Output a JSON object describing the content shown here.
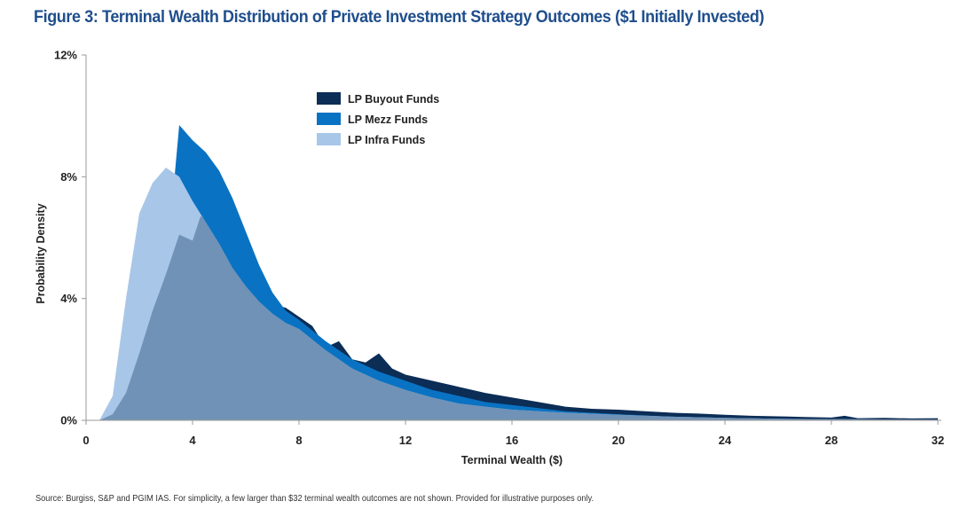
{
  "title": "Figure 3: Terminal Wealth Distribution of Private Investment Strategy Outcomes ($1 Initially Invested)",
  "source": "Source: Burgiss, S&P and PGIM IAS. For simplicity, a few larger than $32 terminal wealth outcomes are not shown. Provided for illustrative purposes only.",
  "chart_data": {
    "type": "area",
    "xlabel": "Terminal Wealth ($)",
    "ylabel": "Probability Density",
    "xlim": [
      0,
      32
    ],
    "ylim": [
      0,
      12
    ],
    "x_ticks": [
      "0",
      "4",
      "8",
      "12",
      "16",
      "20",
      "24",
      "28",
      "32"
    ],
    "y_ticks": [
      "0%",
      "4%",
      "8%",
      "12%"
    ],
    "grid": false,
    "legend_position": "top-center",
    "series": [
      {
        "name": "LP Buyout Funds",
        "color": "#0b2d56",
        "x": [
          0.5,
          1,
          1.5,
          2,
          2.5,
          3,
          3.5,
          4,
          4.3,
          4.6,
          5,
          5.5,
          6,
          6.5,
          7,
          7.5,
          8,
          8.5,
          9,
          9.5,
          10,
          10.5,
          11,
          11.5,
          12,
          13,
          14,
          15,
          16,
          17,
          18,
          19,
          20,
          21,
          22,
          23,
          24,
          25,
          26,
          27,
          28,
          28.5,
          29,
          30,
          31,
          32
        ],
        "values": [
          0,
          0.2,
          0.9,
          2.2,
          3.6,
          4.8,
          6.1,
          5.9,
          6.7,
          6.6,
          6.0,
          5.3,
          5.1,
          4.0,
          3.8,
          3.7,
          3.4,
          3.1,
          2.4,
          2.6,
          2.0,
          1.9,
          2.2,
          1.7,
          1.5,
          1.3,
          1.1,
          0.9,
          0.75,
          0.6,
          0.45,
          0.38,
          0.35,
          0.3,
          0.25,
          0.22,
          0.18,
          0.15,
          0.13,
          0.11,
          0.09,
          0.15,
          0.07,
          0.08,
          0.06,
          0.07
        ]
      },
      {
        "name": "LP Mezz Funds",
        "color": "#0a72c2",
        "x": [
          0.5,
          1,
          1.5,
          2,
          2.5,
          3,
          3.2,
          3.5,
          4,
          4.5,
          5,
          5.5,
          6,
          6.5,
          7,
          7.5,
          8,
          9,
          10,
          11,
          12,
          13,
          14,
          15,
          16,
          17,
          18,
          20,
          22,
          24,
          26,
          28,
          30,
          32
        ],
        "values": [
          0,
          0.5,
          2.0,
          4.0,
          5.5,
          6.4,
          6.8,
          9.7,
          9.2,
          8.8,
          8.2,
          7.3,
          6.2,
          5.1,
          4.2,
          3.6,
          3.3,
          2.6,
          2.0,
          1.6,
          1.3,
          1.0,
          0.8,
          0.6,
          0.5,
          0.4,
          0.3,
          0.2,
          0.12,
          0.08,
          0.05,
          0.03,
          0.02,
          0.01
        ]
      },
      {
        "name": "LP Infra Funds",
        "color": "#a8c6e8",
        "x": [
          0.5,
          1,
          1.5,
          2,
          2.5,
          3,
          3.5,
          4,
          4.5,
          5,
          5.5,
          6,
          6.5,
          7,
          7.5,
          8,
          9,
          10,
          11,
          12,
          13,
          14,
          15,
          16,
          17,
          18,
          20,
          22,
          24,
          26,
          28,
          30,
          32
        ],
        "values": [
          0,
          0.8,
          4.0,
          6.8,
          7.8,
          8.3,
          8.0,
          7.2,
          6.5,
          5.8,
          5.0,
          4.4,
          3.9,
          3.5,
          3.2,
          3.0,
          2.3,
          1.7,
          1.3,
          1.0,
          0.75,
          0.55,
          0.45,
          0.35,
          0.3,
          0.25,
          0.18,
          0.12,
          0.08,
          0.05,
          0.04,
          0.03,
          0.02
        ]
      }
    ],
    "overlap_color": "#7092b6"
  }
}
